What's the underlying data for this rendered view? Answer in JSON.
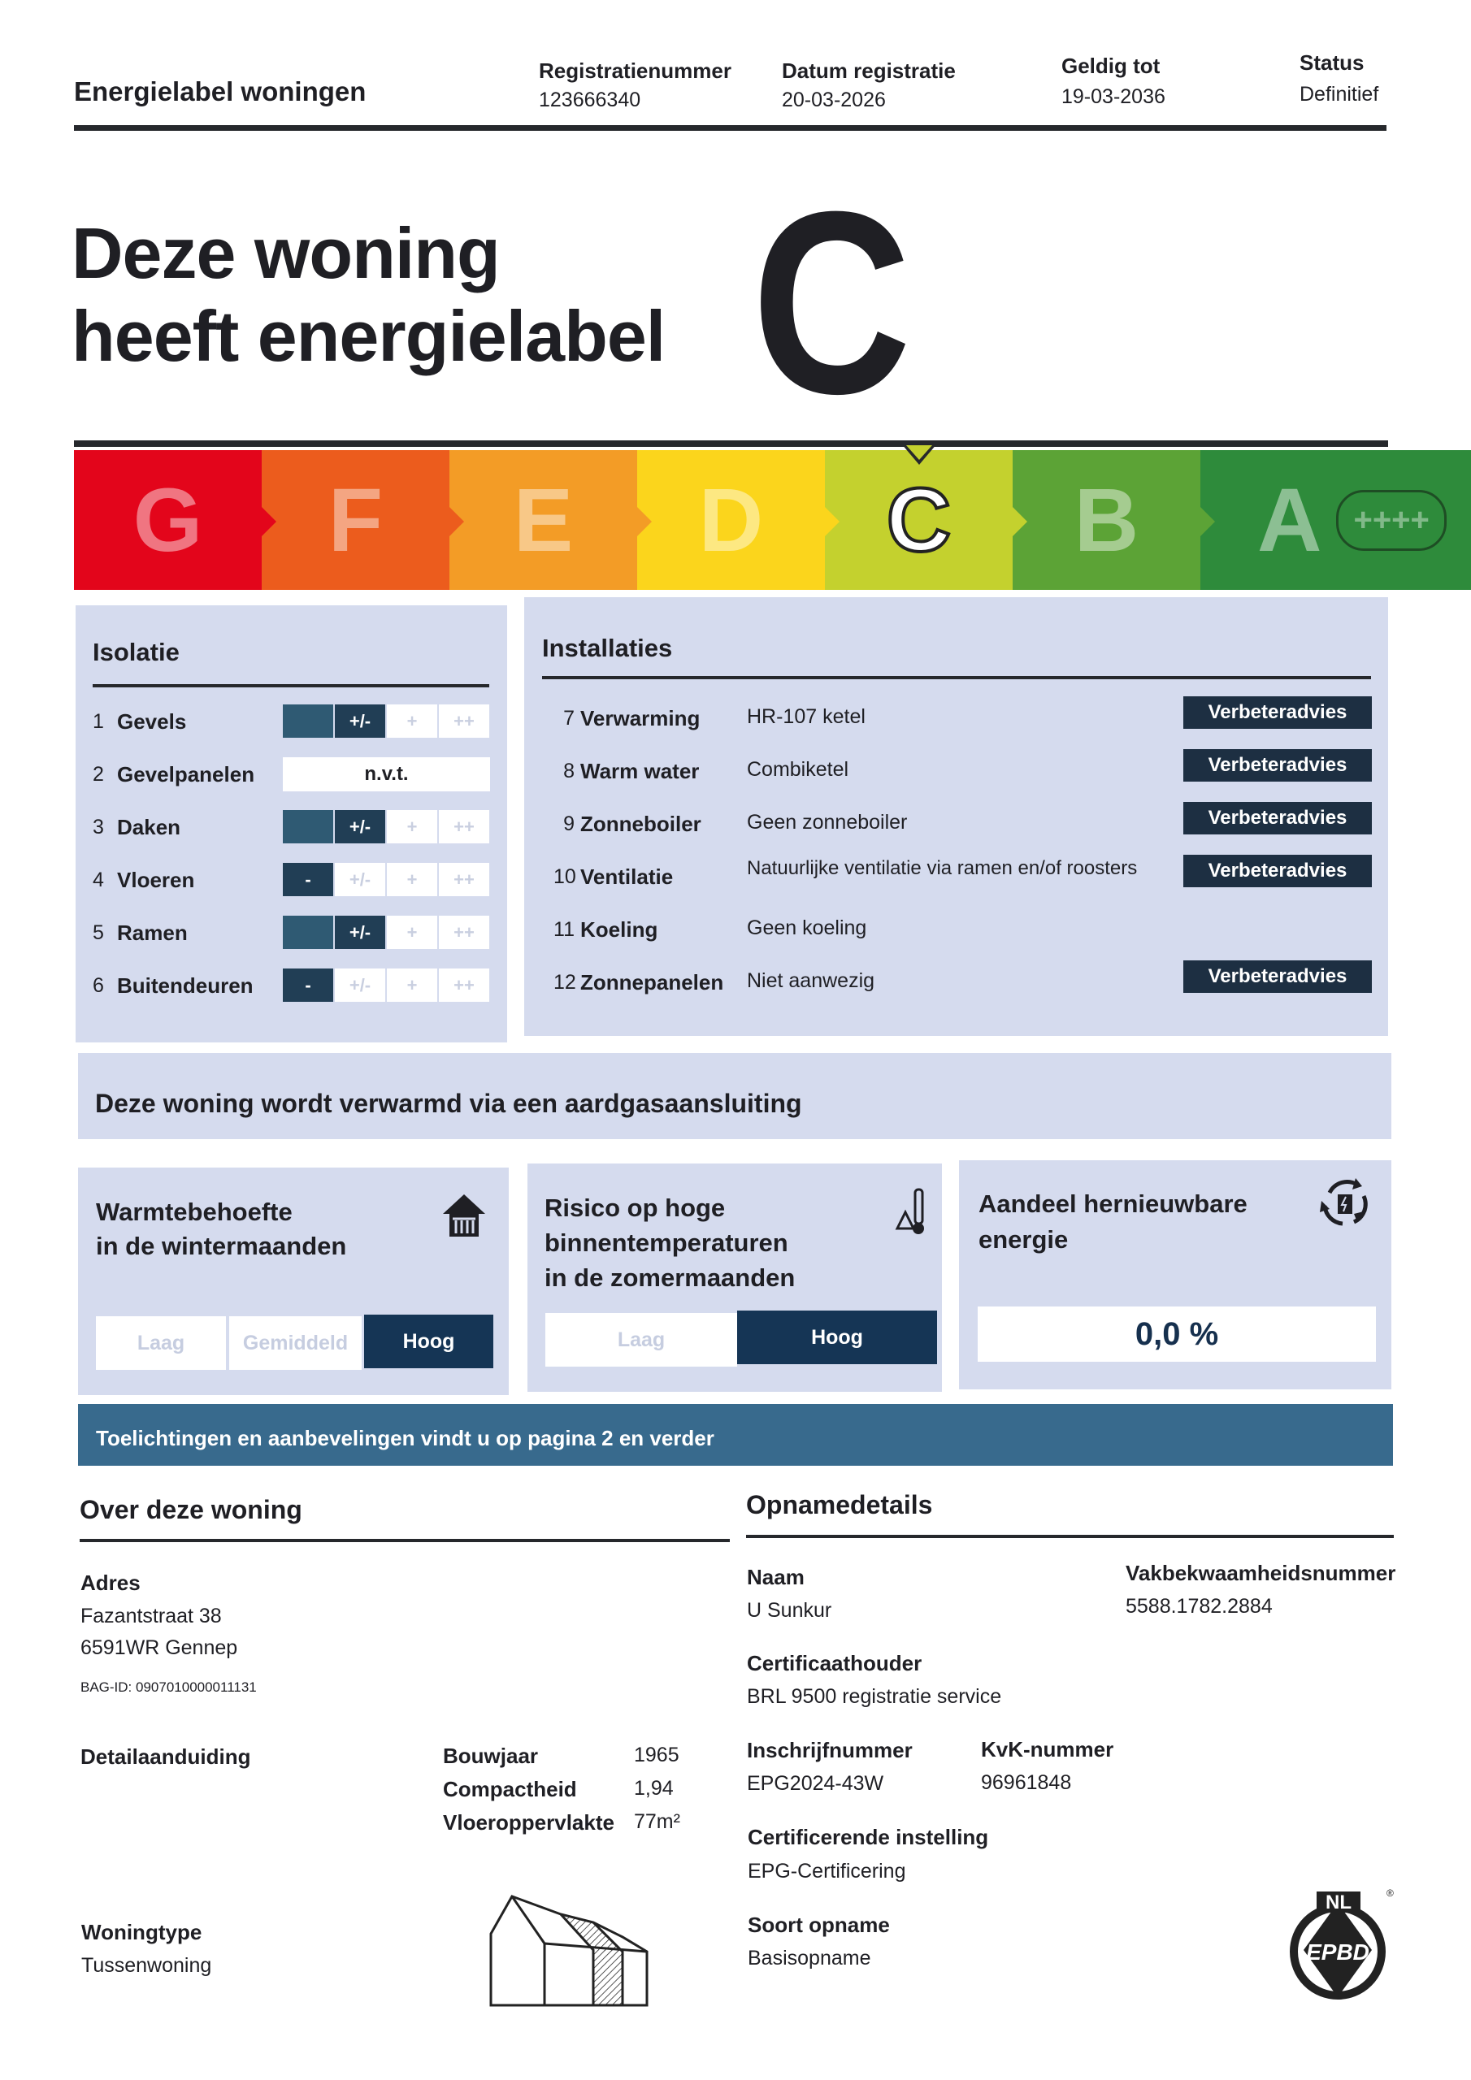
{
  "header": {
    "title": "Energielabel woningen",
    "fields": [
      {
        "label": "Registratienummer",
        "value": "123666340"
      },
      {
        "label": "Datum registratie",
        "value": "20-03-2026"
      },
      {
        "label": "Geldig tot",
        "value": "19-03-2036"
      },
      {
        "label": "Status",
        "value": "Definitief"
      }
    ]
  },
  "hero": {
    "line1": "Deze woning",
    "line2": "heeft energielabel",
    "label": "C"
  },
  "scale": {
    "current": "C",
    "classes": [
      {
        "letter": "G",
        "color": "#e3051b"
      },
      {
        "letter": "F",
        "color": "#ec5c1d"
      },
      {
        "letter": "E",
        "color": "#f39c26"
      },
      {
        "letter": "D",
        "color": "#fbd51c"
      },
      {
        "letter": "C",
        "color": "#c4d12e"
      },
      {
        "letter": "B",
        "color": "#5ca336"
      },
      {
        "letter": "A",
        "color": "#2e8b3b"
      }
    ],
    "a_suffix": "++++"
  },
  "isolatie": {
    "title": "Isolatie",
    "scale_labels": [
      "-",
      "+/-",
      "+",
      "++"
    ],
    "rows": [
      {
        "num": "1",
        "label": "Gevels",
        "level": 2
      },
      {
        "num": "2",
        "label": "Gevelpanelen",
        "na": "n.v.t."
      },
      {
        "num": "3",
        "label": "Daken",
        "level": 2
      },
      {
        "num": "4",
        "label": "Vloeren",
        "level": 1
      },
      {
        "num": "5",
        "label": "Ramen",
        "level": 2
      },
      {
        "num": "6",
        "label": "Buitendeuren",
        "level": 1
      }
    ]
  },
  "installaties": {
    "title": "Installaties",
    "advice_label": "Verbeteradvies",
    "rows": [
      {
        "num": "7",
        "label": "Verwarming",
        "value": "HR-107 ketel",
        "advice": true
      },
      {
        "num": "8",
        "label": "Warm water",
        "value": "Combiketel",
        "advice": true
      },
      {
        "num": "9",
        "label": "Zonneboiler",
        "value": "Geen zonneboiler",
        "advice": true
      },
      {
        "num": "10",
        "label": "Ventilatie",
        "value": "Natuurlijke ventilatie via ramen en/of roosters",
        "advice": true
      },
      {
        "num": "11",
        "label": "Koeling",
        "value": "Geen koeling",
        "advice": false
      },
      {
        "num": "12",
        "label": "Zonnepanelen",
        "value": "Niet aanwezig",
        "advice": true
      }
    ]
  },
  "heating_banner": "Deze woning wordt verwarmd via een aardgasaansluiting",
  "warmte": {
    "title1": "Warmtebehoefte",
    "title2": "in de wintermaanden",
    "options": [
      "Laag",
      "Gemiddeld",
      "Hoog"
    ],
    "selected": "Hoog",
    "icon": "house-heating-icon"
  },
  "risico": {
    "title1": "Risico op hoge",
    "title2": "binnentemperaturen",
    "title3": "in de zomermaanden",
    "options": [
      "Laag",
      "Hoog"
    ],
    "selected": "Hoog",
    "icon": "thermometer-warning-icon"
  },
  "hernieuwbaar": {
    "title1": "Aandeel hernieuwbare",
    "title2": "energie",
    "value": "0,0 %",
    "icon": "renewable-cycle-icon"
  },
  "footer_banner": "Toelichtingen en aanbevelingen vindt u op pagina 2 en verder",
  "woning": {
    "title": "Over deze woning",
    "adres_label": "Adres",
    "adres1": "Fazantstraat 38",
    "adres2": "6591WR Gennep",
    "bag": "BAG-ID: 0907010000011131",
    "detail_label": "Detailaanduiding",
    "specs": [
      {
        "label": "Bouwjaar",
        "value": "1965"
      },
      {
        "label": "Compactheid",
        "value": "1,94"
      },
      {
        "label": "Vloeroppervlakte",
        "value": "77m²"
      }
    ],
    "type_label": "Woningtype",
    "type_value": "Tussenwoning"
  },
  "opname": {
    "title": "Opnamedetails",
    "naam_label": "Naam",
    "naam": "U Sunkur",
    "vak_label": "Vakbekwaamheidsnummer",
    "vak": "5588.1782.2884",
    "cert_label": "Certificaathouder",
    "cert": "BRL 9500 registratie service",
    "insch_label": "Inschrijfnummer",
    "insch": "EPG2024-43W",
    "kvk_label": "KvK-nummer",
    "kvk": "96961848",
    "inst_label": "Certificerende instelling",
    "inst": "EPG-Certificering",
    "soort_label": "Soort opname",
    "soort": "Basisopname"
  },
  "logo": {
    "text": "EPBD",
    "top": "NL",
    "ring": "ENERGY PERFORMANCE OF BUILDINGS DIRECTIVE"
  }
}
